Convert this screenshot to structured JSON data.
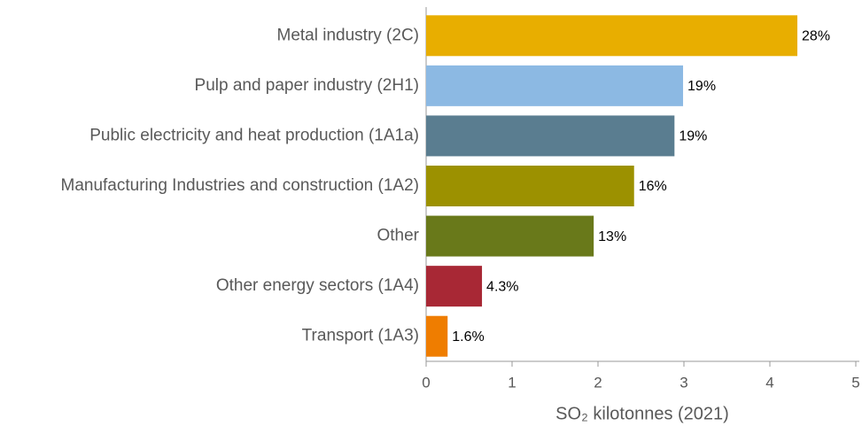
{
  "chart_data": {
    "type": "barh",
    "categories": [
      "Metal industry (2C)",
      "Pulp and paper industry (2H1)",
      "Public electricity and heat production (1A1a)",
      "Manufacturing Industries and construction (1A2)",
      "Other",
      "Other energy sectors (1A4)",
      "Transport (1A3)"
    ],
    "values": [
      4.32,
      2.99,
      2.89,
      2.42,
      1.95,
      0.65,
      0.25
    ],
    "share_labels": [
      "28%",
      "19%",
      "19%",
      "16%",
      "13%",
      "4.3%",
      "1.6%"
    ],
    "colors": [
      "#e8ae00",
      "#8cb9e3",
      "#5a7d90",
      "#9c9100",
      "#69791a",
      "#a82835",
      "#ef7d00"
    ],
    "x_label": "SO₂ kilotonnes  (2021)",
    "xlim": [
      0,
      5
    ],
    "xticks": [
      0,
      1,
      2,
      3,
      4,
      5
    ]
  }
}
